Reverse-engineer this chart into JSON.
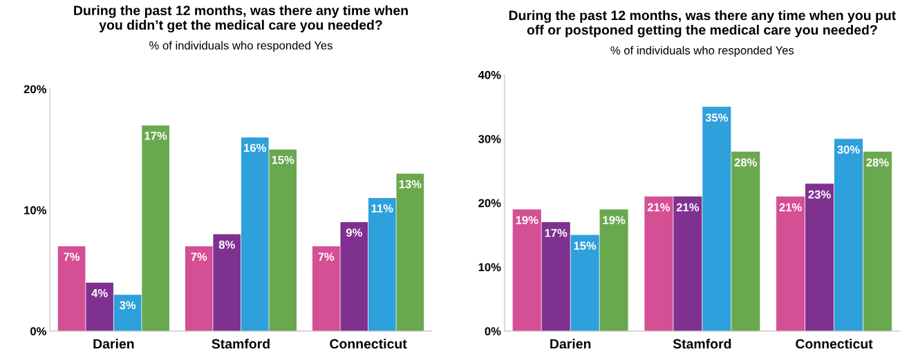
{
  "chart_data": [
    {
      "type": "bar",
      "title": "During the past 12 months, was there any time when\nyou didn’t get the medical care you needed?",
      "subtitle": "% of individuals who responded Yes",
      "categories": [
        "Darien",
        "Stamford",
        "Connecticut"
      ],
      "ylim": [
        0,
        20
      ],
      "yticks": [
        {
          "value": 0,
          "label": "0%"
        },
        {
          "value": 10,
          "label": "10%"
        },
        {
          "value": 20,
          "label": "20%"
        }
      ],
      "grid": false,
      "legend": false,
      "series": [
        {
          "color": "#d54f95",
          "values": [
            7,
            7,
            7
          ],
          "value_labels": [
            "7%",
            "7%",
            "7%"
          ]
        },
        {
          "color": "#7f3190",
          "values": [
            4,
            8,
            9
          ],
          "value_labels": [
            "4%",
            "8%",
            "9%"
          ]
        },
        {
          "color": "#2ea0db",
          "values": [
            3,
            16,
            11
          ],
          "value_labels": [
            "3%",
            "16%",
            "11%"
          ]
        },
        {
          "color": "#6aa84f",
          "values": [
            17,
            15,
            13
          ],
          "value_labels": [
            "17%",
            "15%",
            "13%"
          ]
        }
      ]
    },
    {
      "type": "bar",
      "title": "During the past 12 months, was there any time when you put\noff or postponed getting the medical care you needed?",
      "subtitle": "% of individuals who responded Yes",
      "categories": [
        "Darien",
        "Stamford",
        "Connecticut"
      ],
      "ylim": [
        0,
        40
      ],
      "yticks": [
        {
          "value": 0,
          "label": "0%"
        },
        {
          "value": 10,
          "label": "10%"
        },
        {
          "value": 20,
          "label": "20%"
        },
        {
          "value": 30,
          "label": "30%"
        },
        {
          "value": 40,
          "label": "40%"
        }
      ],
      "grid": false,
      "legend": false,
      "series": [
        {
          "color": "#d54f95",
          "values": [
            19,
            21,
            21
          ],
          "value_labels": [
            "19%",
            "21%",
            "21%"
          ]
        },
        {
          "color": "#7f3190",
          "values": [
            17,
            21,
            23
          ],
          "value_labels": [
            "17%",
            "21%",
            "23%"
          ]
        },
        {
          "color": "#2ea0db",
          "values": [
            15,
            35,
            30
          ],
          "value_labels": [
            "15%",
            "35%",
            "30%"
          ]
        },
        {
          "color": "#6aa84f",
          "values": [
            19,
            28,
            28
          ],
          "value_labels": [
            "19%",
            "28%",
            "28%"
          ]
        }
      ]
    }
  ]
}
